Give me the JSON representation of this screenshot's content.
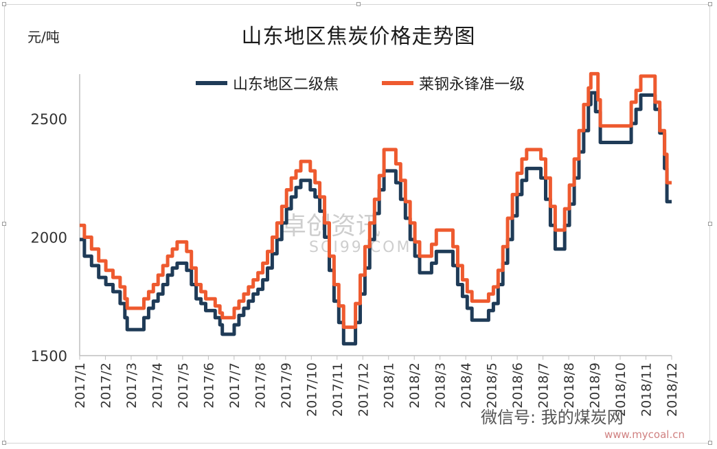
{
  "title": "山东地区焦炭价格走势图",
  "unit_label": "元/吨",
  "watermark": {
    "main": "卓创资讯",
    "sub": "SCI99.COM"
  },
  "wechat": "微信号: 我的煤炭网",
  "site": "www.mycoal.cn",
  "colors": {
    "series1": "#1f3b57",
    "series2": "#ee5a2f"
  },
  "chart_data": {
    "type": "line",
    "title": "山东地区焦炭价格走势图",
    "ylabel": "元/吨",
    "xlabel": "",
    "ylim": [
      1500,
      2700
    ],
    "yticks": [
      1500,
      2000,
      2500
    ],
    "x_tick_labels": [
      "2017/1",
      "2017/2",
      "2017/3",
      "2017/4",
      "2017/5",
      "2017/6",
      "2017/7",
      "2017/8",
      "2017/9",
      "2017/10",
      "2017/11",
      "2017/12",
      "2018/1",
      "2018/2",
      "2018/3",
      "2018/4",
      "2018/5",
      "2018/6",
      "2018/7",
      "2018/8",
      "2018/9",
      "2018/10",
      "2018/11",
      "2018/12"
    ],
    "x_month_range": [
      0,
      23.3
    ],
    "legend_position": "top",
    "grid": false,
    "series": [
      {
        "name": "山东地区二级焦",
        "color": "#1f3b57",
        "points": [
          [
            0.0,
            1990
          ],
          [
            0.2,
            1920
          ],
          [
            0.5,
            1880
          ],
          [
            0.8,
            1830
          ],
          [
            1.1,
            1800
          ],
          [
            1.4,
            1770
          ],
          [
            1.7,
            1720
          ],
          [
            1.9,
            1660
          ],
          [
            2.0,
            1610
          ],
          [
            2.5,
            1610
          ],
          [
            2.7,
            1660
          ],
          [
            2.9,
            1700
          ],
          [
            3.1,
            1730
          ],
          [
            3.3,
            1760
          ],
          [
            3.5,
            1800
          ],
          [
            3.7,
            1840
          ],
          [
            3.9,
            1870
          ],
          [
            4.1,
            1890
          ],
          [
            4.3,
            1890
          ],
          [
            4.5,
            1860
          ],
          [
            4.7,
            1800
          ],
          [
            4.9,
            1740
          ],
          [
            5.1,
            1720
          ],
          [
            5.3,
            1690
          ],
          [
            5.5,
            1690
          ],
          [
            5.7,
            1660
          ],
          [
            5.9,
            1630
          ],
          [
            6.0,
            1590
          ],
          [
            6.3,
            1590
          ],
          [
            6.5,
            1630
          ],
          [
            6.7,
            1670
          ],
          [
            6.9,
            1700
          ],
          [
            7.1,
            1730
          ],
          [
            7.3,
            1760
          ],
          [
            7.5,
            1780
          ],
          [
            7.7,
            1820
          ],
          [
            7.9,
            1870
          ],
          [
            8.1,
            1930
          ],
          [
            8.3,
            1990
          ],
          [
            8.5,
            2060
          ],
          [
            8.7,
            2120
          ],
          [
            8.9,
            2170
          ],
          [
            9.1,
            2210
          ],
          [
            9.3,
            2240
          ],
          [
            9.5,
            2240
          ],
          [
            9.7,
            2200
          ],
          [
            9.9,
            2170
          ],
          [
            10.1,
            2110
          ],
          [
            10.3,
            2000
          ],
          [
            10.5,
            1860
          ],
          [
            10.7,
            1730
          ],
          [
            10.9,
            1640
          ],
          [
            11.1,
            1550
          ],
          [
            11.4,
            1550
          ],
          [
            11.6,
            1640
          ],
          [
            11.8,
            1760
          ],
          [
            12.0,
            1870
          ],
          [
            12.2,
            1990
          ],
          [
            12.4,
            2100
          ],
          [
            12.6,
            2200
          ],
          [
            12.8,
            2280
          ],
          [
            13.1,
            2280
          ],
          [
            13.3,
            2230
          ],
          [
            13.5,
            2160
          ],
          [
            13.7,
            2080
          ],
          [
            13.9,
            1990
          ],
          [
            14.1,
            1920
          ],
          [
            14.3,
            1850
          ],
          [
            14.6,
            1850
          ],
          [
            14.8,
            1890
          ],
          [
            15.0,
            1940
          ],
          [
            15.5,
            1940
          ],
          [
            15.7,
            1880
          ],
          [
            15.9,
            1800
          ],
          [
            16.1,
            1750
          ],
          [
            16.3,
            1700
          ],
          [
            16.5,
            1650
          ],
          [
            17.0,
            1650
          ],
          [
            17.2,
            1690
          ],
          [
            17.4,
            1720
          ],
          [
            17.6,
            1800
          ],
          [
            17.8,
            1890
          ],
          [
            18.0,
            1990
          ],
          [
            18.2,
            2090
          ],
          [
            18.4,
            2180
          ],
          [
            18.6,
            2240
          ],
          [
            18.8,
            2290
          ],
          [
            19.2,
            2290
          ],
          [
            19.4,
            2250
          ],
          [
            19.6,
            2160
          ],
          [
            19.8,
            2050
          ],
          [
            20.0,
            1950
          ],
          [
            20.3,
            1950
          ],
          [
            20.4,
            2050
          ],
          [
            20.6,
            2140
          ],
          [
            20.8,
            2250
          ],
          [
            21.0,
            2360
          ],
          [
            21.2,
            2450
          ],
          [
            21.4,
            2560
          ],
          [
            21.5,
            2610
          ],
          [
            21.7,
            2530
          ],
          [
            21.9,
            2400
          ],
          [
            23.0,
            2400
          ],
          [
            23.2,
            2480
          ],
          [
            23.4,
            2540
          ],
          [
            23.6,
            2600
          ],
          [
            24.0,
            2600
          ],
          [
            24.2,
            2540
          ],
          [
            24.4,
            2440
          ],
          [
            24.6,
            2290
          ],
          [
            24.7,
            2150
          ],
          [
            24.9,
            2150
          ]
        ]
      },
      {
        "name": "莱钢永锋准一级",
        "color": "#ee5a2f",
        "points": [
          [
            0.0,
            2050
          ],
          [
            0.2,
            2000
          ],
          [
            0.5,
            1950
          ],
          [
            0.8,
            1900
          ],
          [
            1.1,
            1860
          ],
          [
            1.4,
            1830
          ],
          [
            1.7,
            1790
          ],
          [
            1.9,
            1740
          ],
          [
            2.0,
            1700
          ],
          [
            2.5,
            1700
          ],
          [
            2.7,
            1740
          ],
          [
            2.9,
            1770
          ],
          [
            3.1,
            1800
          ],
          [
            3.3,
            1840
          ],
          [
            3.5,
            1880
          ],
          [
            3.7,
            1920
          ],
          [
            3.9,
            1950
          ],
          [
            4.1,
            1980
          ],
          [
            4.3,
            1980
          ],
          [
            4.5,
            1940
          ],
          [
            4.7,
            1870
          ],
          [
            4.9,
            1800
          ],
          [
            5.1,
            1770
          ],
          [
            5.3,
            1740
          ],
          [
            5.5,
            1740
          ],
          [
            5.7,
            1710
          ],
          [
            5.9,
            1680
          ],
          [
            6.0,
            1660
          ],
          [
            6.3,
            1660
          ],
          [
            6.5,
            1700
          ],
          [
            6.7,
            1730
          ],
          [
            6.9,
            1760
          ],
          [
            7.1,
            1790
          ],
          [
            7.3,
            1820
          ],
          [
            7.5,
            1850
          ],
          [
            7.7,
            1890
          ],
          [
            7.9,
            1940
          ],
          [
            8.1,
            2000
          ],
          [
            8.3,
            2060
          ],
          [
            8.5,
            2130
          ],
          [
            8.7,
            2200
          ],
          [
            8.9,
            2250
          ],
          [
            9.1,
            2280
          ],
          [
            9.3,
            2320
          ],
          [
            9.5,
            2320
          ],
          [
            9.7,
            2280
          ],
          [
            9.9,
            2230
          ],
          [
            10.1,
            2170
          ],
          [
            10.3,
            2060
          ],
          [
            10.5,
            1920
          ],
          [
            10.7,
            1800
          ],
          [
            10.9,
            1710
          ],
          [
            11.1,
            1620
          ],
          [
            11.4,
            1620
          ],
          [
            11.6,
            1720
          ],
          [
            11.8,
            1840
          ],
          [
            12.0,
            1960
          ],
          [
            12.2,
            2060
          ],
          [
            12.4,
            2160
          ],
          [
            12.6,
            2260
          ],
          [
            12.8,
            2370
          ],
          [
            13.1,
            2370
          ],
          [
            13.3,
            2310
          ],
          [
            13.5,
            2240
          ],
          [
            13.7,
            2150
          ],
          [
            13.9,
            2060
          ],
          [
            14.1,
            1980
          ],
          [
            14.3,
            1920
          ],
          [
            14.6,
            1920
          ],
          [
            14.8,
            1970
          ],
          [
            15.0,
            2030
          ],
          [
            15.5,
            2030
          ],
          [
            15.7,
            1960
          ],
          [
            15.9,
            1880
          ],
          [
            16.1,
            1820
          ],
          [
            16.3,
            1770
          ],
          [
            16.5,
            1730
          ],
          [
            17.0,
            1730
          ],
          [
            17.2,
            1760
          ],
          [
            17.4,
            1790
          ],
          [
            17.6,
            1860
          ],
          [
            17.8,
            1960
          ],
          [
            18.0,
            2080
          ],
          [
            18.2,
            2180
          ],
          [
            18.4,
            2270
          ],
          [
            18.6,
            2330
          ],
          [
            18.8,
            2370
          ],
          [
            19.2,
            2370
          ],
          [
            19.4,
            2330
          ],
          [
            19.6,
            2250
          ],
          [
            19.8,
            2130
          ],
          [
            20.0,
            2030
          ],
          [
            20.3,
            2030
          ],
          [
            20.4,
            2120
          ],
          [
            20.6,
            2220
          ],
          [
            20.8,
            2330
          ],
          [
            21.0,
            2450
          ],
          [
            21.2,
            2560
          ],
          [
            21.4,
            2630
          ],
          [
            21.5,
            2690
          ],
          [
            21.7,
            2690
          ],
          [
            21.8,
            2580
          ],
          [
            21.9,
            2470
          ],
          [
            23.0,
            2470
          ],
          [
            23.2,
            2570
          ],
          [
            23.4,
            2620
          ],
          [
            23.6,
            2680
          ],
          [
            24.0,
            2680
          ],
          [
            24.2,
            2570
          ],
          [
            24.4,
            2450
          ],
          [
            24.6,
            2350
          ],
          [
            24.7,
            2230
          ],
          [
            24.9,
            2230
          ]
        ]
      }
    ]
  }
}
